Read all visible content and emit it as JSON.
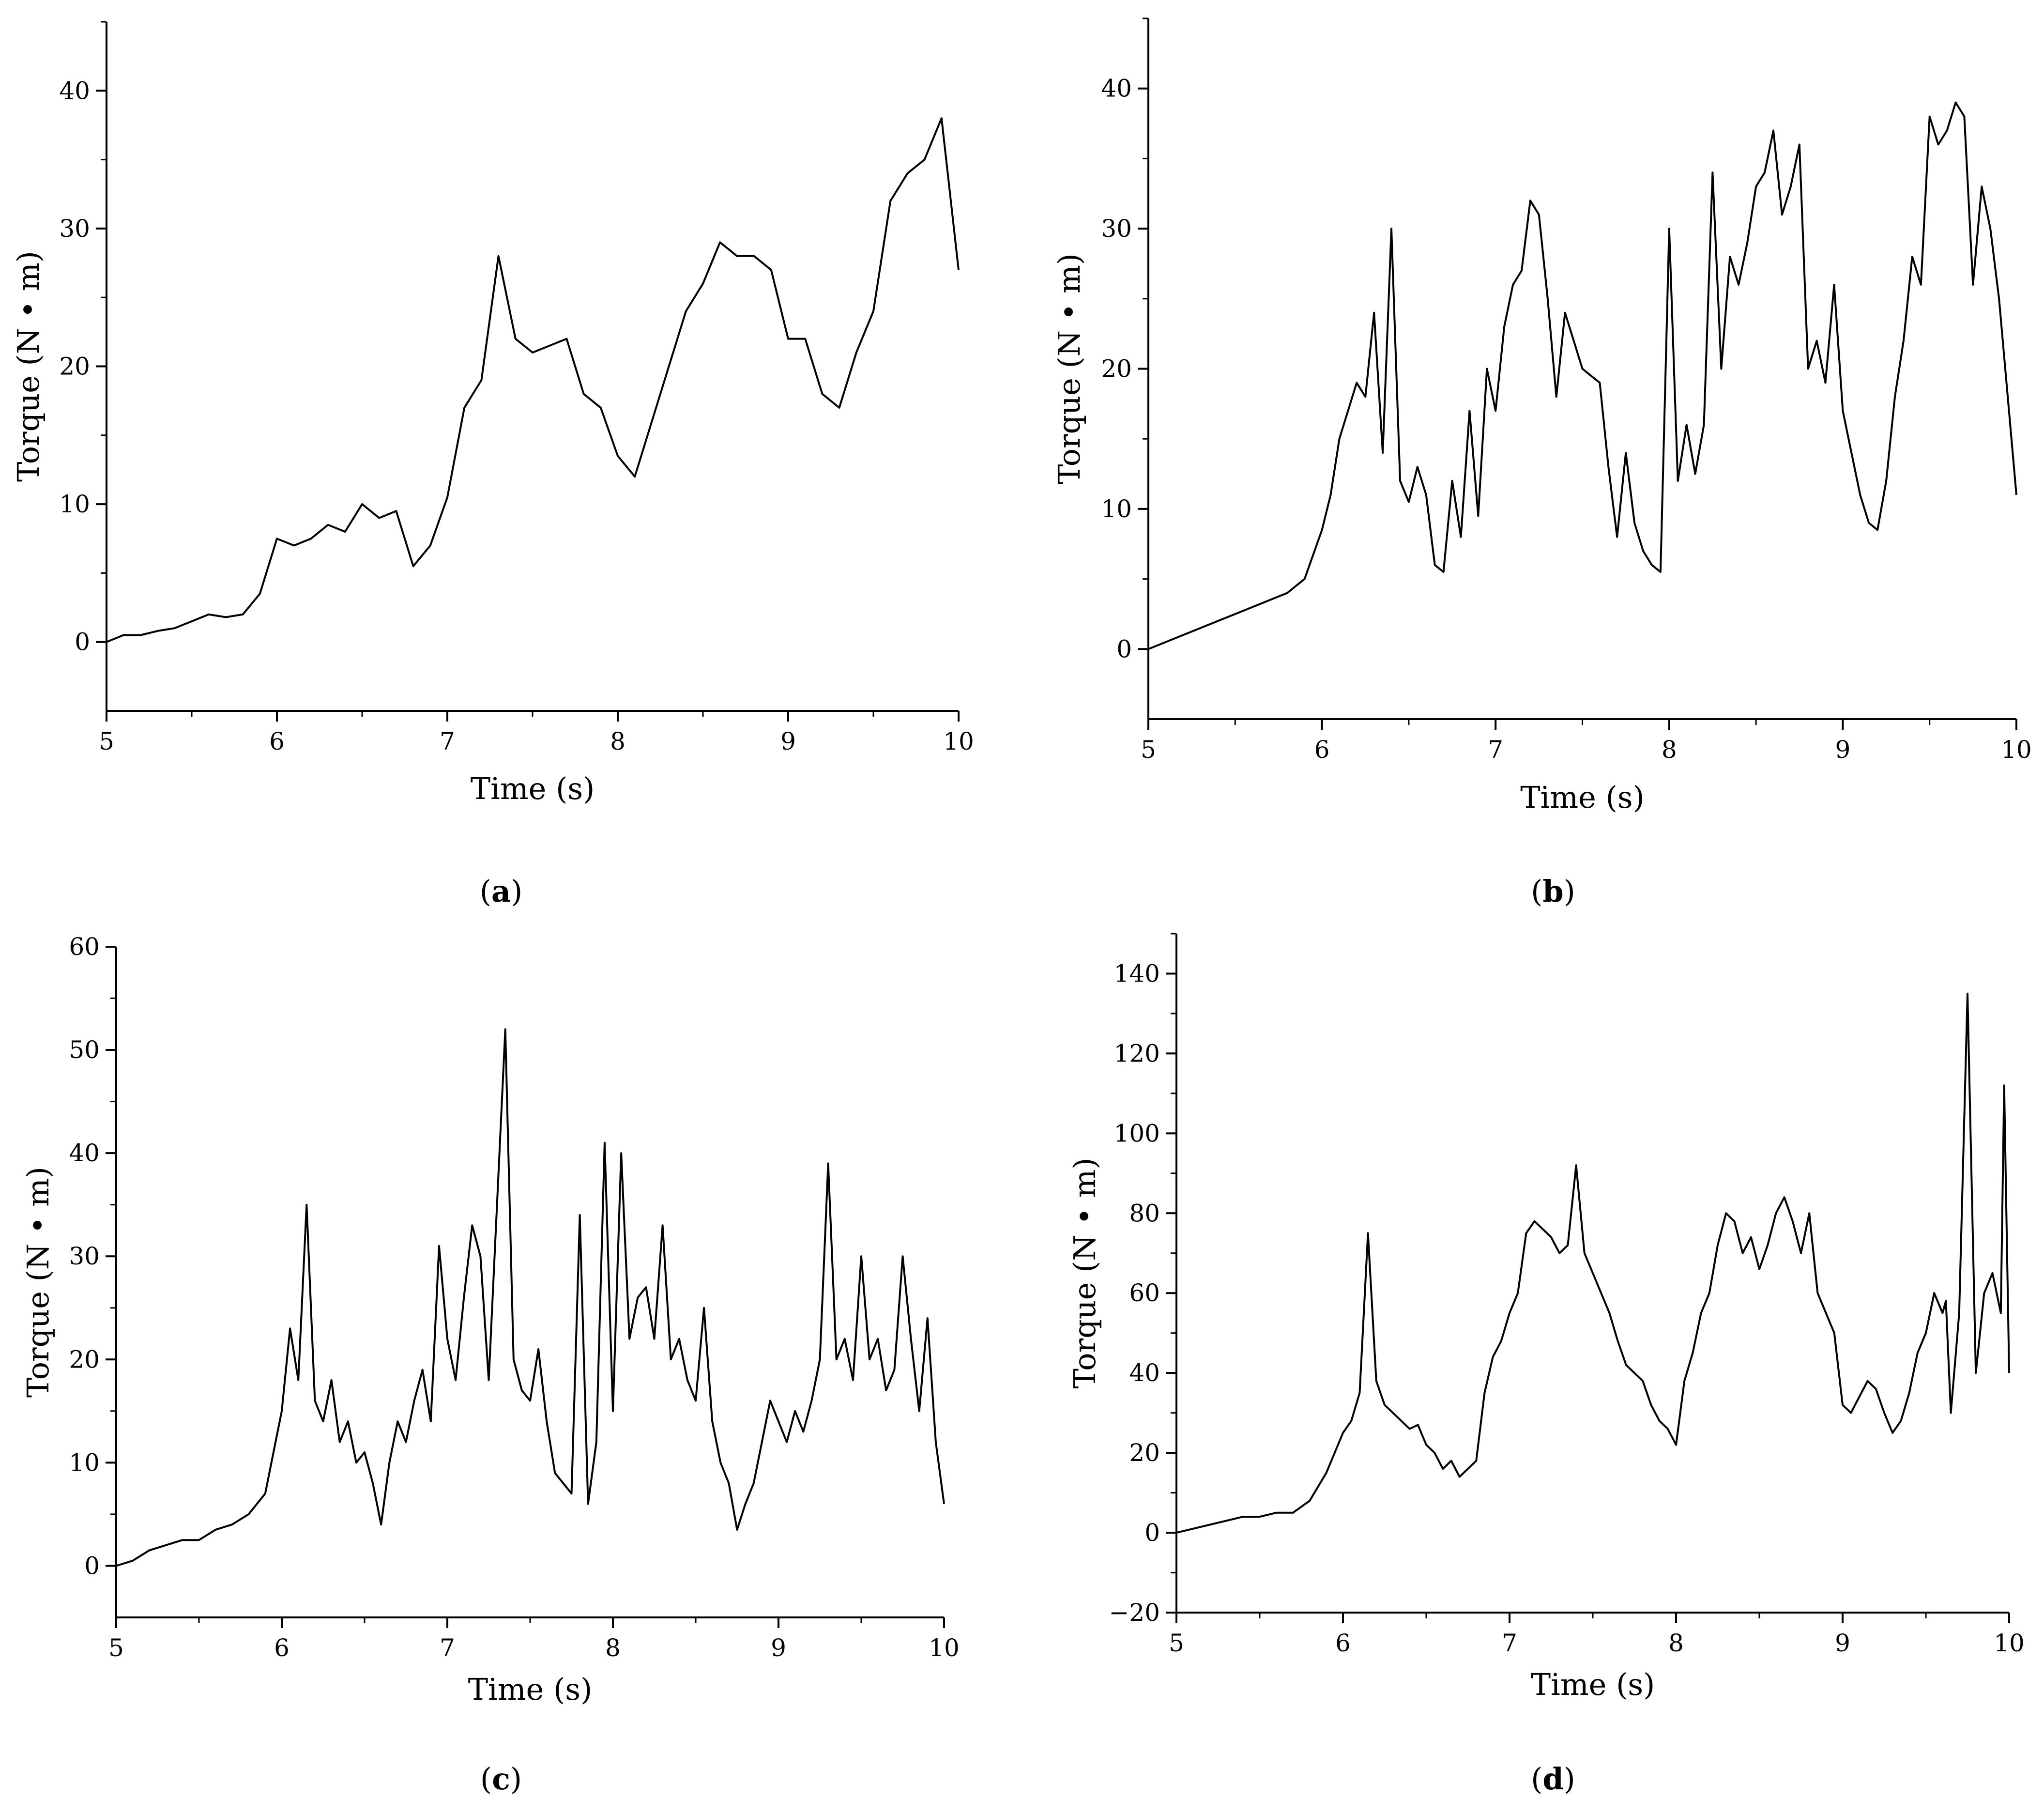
{
  "figure": {
    "captions": [
      {
        "open": "(",
        "letter": "a",
        "close": ")"
      },
      {
        "open": "(",
        "letter": "b",
        "close": ")"
      },
      {
        "open": "(",
        "letter": "c",
        "close": ")"
      },
      {
        "open": "(",
        "letter": "d",
        "close": ")"
      }
    ]
  },
  "chart_data": [
    {
      "type": "line",
      "title": "",
      "xlabel": "Time (s)",
      "ylabel": "Torque (N • m)",
      "xlim": [
        5,
        10
      ],
      "ylim": [
        -5,
        45
      ],
      "xticks": [
        5,
        6,
        7,
        8,
        9,
        10
      ],
      "yticks": [
        0,
        10,
        20,
        30,
        40
      ],
      "grid": false,
      "legend": "none",
      "line_color": "#000000",
      "x": [
        5.0,
        5.1,
        5.2,
        5.3,
        5.4,
        5.5,
        5.6,
        5.7,
        5.8,
        5.9,
        6.0,
        6.1,
        6.2,
        6.3,
        6.4,
        6.5,
        6.6,
        6.7,
        6.8,
        6.9,
        7.0,
        7.1,
        7.2,
        7.3,
        7.4,
        7.5,
        7.6,
        7.7,
        7.8,
        7.9,
        8.0,
        8.1,
        8.2,
        8.3,
        8.4,
        8.5,
        8.6,
        8.7,
        8.8,
        8.9,
        9.0,
        9.1,
        9.2,
        9.3,
        9.4,
        9.5,
        9.6,
        9.7,
        9.8,
        9.9,
        10.0
      ],
      "y": [
        0,
        0.5,
        0.5,
        0.8,
        1.0,
        1.5,
        2.0,
        1.8,
        2.0,
        3.5,
        7.5,
        7.0,
        7.5,
        8.5,
        8.0,
        10.0,
        9.0,
        9.5,
        5.5,
        7.0,
        10.5,
        17.0,
        19.0,
        28.0,
        22.0,
        21.0,
        21.5,
        22.0,
        18.0,
        17.0,
        13.5,
        12.0,
        16.0,
        20.0,
        24.0,
        26.0,
        29.0,
        28.0,
        28.0,
        27.0,
        22.0,
        22.0,
        18.0,
        17.0,
        21.0,
        24.0,
        32.0,
        34.0,
        35.0,
        38.0,
        27.0
      ]
    },
    {
      "type": "line",
      "title": "",
      "xlabel": "Time (s)",
      "ylabel": "Torque (N • m)",
      "xlim": [
        5,
        10
      ],
      "ylim": [
        -5,
        45
      ],
      "xticks": [
        5,
        6,
        7,
        8,
        9,
        10
      ],
      "yticks": [
        0,
        10,
        20,
        30,
        40
      ],
      "grid": false,
      "legend": "none",
      "line_color": "#000000",
      "x": [
        5.0,
        5.1,
        5.2,
        5.3,
        5.4,
        5.5,
        5.6,
        5.7,
        5.8,
        5.9,
        6.0,
        6.05,
        6.1,
        6.15,
        6.2,
        6.25,
        6.3,
        6.35,
        6.4,
        6.45,
        6.5,
        6.55,
        6.6,
        6.65,
        6.7,
        6.75,
        6.8,
        6.85,
        6.9,
        6.95,
        7.0,
        7.05,
        7.1,
        7.15,
        7.2,
        7.25,
        7.3,
        7.35,
        7.4,
        7.45,
        7.5,
        7.55,
        7.6,
        7.65,
        7.7,
        7.75,
        7.8,
        7.85,
        7.9,
        7.95,
        8.0,
        8.05,
        8.1,
        8.15,
        8.2,
        8.25,
        8.3,
        8.35,
        8.4,
        8.45,
        8.5,
        8.55,
        8.6,
        8.65,
        8.7,
        8.75,
        8.8,
        8.85,
        8.9,
        8.95,
        9.0,
        9.05,
        9.1,
        9.15,
        9.2,
        9.25,
        9.3,
        9.35,
        9.4,
        9.45,
        9.5,
        9.55,
        9.6,
        9.65,
        9.7,
        9.75,
        9.8,
        9.85,
        9.9,
        9.95,
        10.0
      ],
      "y": [
        0,
        0.5,
        1.0,
        1.5,
        2.0,
        2.5,
        3.0,
        3.5,
        4.0,
        5.0,
        8.5,
        11.0,
        15.0,
        17.0,
        19.0,
        18.0,
        24.0,
        14.0,
        30.0,
        12.0,
        10.5,
        13.0,
        11.0,
        6.0,
        5.5,
        12.0,
        8.0,
        17.0,
        9.5,
        20.0,
        17.0,
        23.0,
        26.0,
        27.0,
        32.0,
        31.0,
        25.0,
        18.0,
        24.0,
        22.0,
        20.0,
        19.5,
        19.0,
        13.0,
        8.0,
        14.0,
        9.0,
        7.0,
        6.0,
        5.5,
        30.0,
        12.0,
        16.0,
        12.5,
        16.0,
        34.0,
        20.0,
        28.0,
        26.0,
        29.0,
        33.0,
        34.0,
        37.0,
        31.0,
        33.0,
        36.0,
        20.0,
        22.0,
        19.0,
        26.0,
        17.0,
        14.0,
        11.0,
        9.0,
        8.5,
        12.0,
        18.0,
        22.0,
        28.0,
        26.0,
        38.0,
        36.0,
        37.0,
        39.0,
        38.0,
        26.0,
        33.0,
        30.0,
        25.0,
        18.0,
        11.0
      ]
    },
    {
      "type": "line",
      "title": "",
      "xlabel": "Time (s)",
      "ylabel": "Torque (N • m)",
      "xlim": [
        5,
        10
      ],
      "ylim": [
        -5,
        60
      ],
      "xticks": [
        5,
        6,
        7,
        8,
        9,
        10
      ],
      "yticks": [
        0,
        10,
        20,
        30,
        40,
        50,
        60
      ],
      "grid": false,
      "legend": "none",
      "line_color": "#000000",
      "x": [
        5.0,
        5.1,
        5.2,
        5.3,
        5.4,
        5.5,
        5.6,
        5.7,
        5.8,
        5.9,
        6.0,
        6.05,
        6.1,
        6.15,
        6.2,
        6.25,
        6.3,
        6.35,
        6.4,
        6.45,
        6.5,
        6.55,
        6.6,
        6.65,
        6.7,
        6.75,
        6.8,
        6.85,
        6.9,
        6.95,
        7.0,
        7.05,
        7.1,
        7.15,
        7.2,
        7.25,
        7.3,
        7.35,
        7.4,
        7.45,
        7.5,
        7.55,
        7.6,
        7.65,
        7.7,
        7.75,
        7.8,
        7.85,
        7.9,
        7.95,
        8.0,
        8.05,
        8.1,
        8.15,
        8.2,
        8.25,
        8.3,
        8.35,
        8.4,
        8.45,
        8.5,
        8.55,
        8.6,
        8.65,
        8.7,
        8.75,
        8.8,
        8.85,
        8.9,
        8.95,
        9.0,
        9.05,
        9.1,
        9.15,
        9.2,
        9.25,
        9.3,
        9.35,
        9.4,
        9.45,
        9.5,
        9.55,
        9.6,
        9.65,
        9.7,
        9.75,
        9.8,
        9.85,
        9.9,
        9.95,
        10.0
      ],
      "y": [
        0,
        0.5,
        1.5,
        2.0,
        2.5,
        2.5,
        3.5,
        4.0,
        5.0,
        7.0,
        15.0,
        23.0,
        18.0,
        35.0,
        16.0,
        14.0,
        18.0,
        12.0,
        14.0,
        10.0,
        11.0,
        8.0,
        4.0,
        10.0,
        14.0,
        12.0,
        16.0,
        19.0,
        14.0,
        31.0,
        22.0,
        18.0,
        26.0,
        33.0,
        30.0,
        18.0,
        35.0,
        52.0,
        20.0,
        17.0,
        16.0,
        21.0,
        14.0,
        9.0,
        8.0,
        7.0,
        34.0,
        6.0,
        12.0,
        41.0,
        15.0,
        40.0,
        22.0,
        26.0,
        27.0,
        22.0,
        33.0,
        20.0,
        22.0,
        18.0,
        16.0,
        25.0,
        14.0,
        10.0,
        8.0,
        3.5,
        6.0,
        8.0,
        12.0,
        16.0,
        14.0,
        12.0,
        15.0,
        13.0,
        16.0,
        20.0,
        39.0,
        20.0,
        22.0,
        18.0,
        30.0,
        20.0,
        22.0,
        17.0,
        19.0,
        30.0,
        22.0,
        15.0,
        24.0,
        12.0,
        6.0
      ]
    },
    {
      "type": "line",
      "title": "",
      "xlabel": "Time (s)",
      "ylabel": "Torque (N • m)",
      "xlim": [
        5,
        10
      ],
      "ylim": [
        -20,
        150
      ],
      "xticks": [
        5,
        6,
        7,
        8,
        9,
        10
      ],
      "yticks": [
        -20,
        0,
        20,
        40,
        60,
        80,
        100,
        120,
        140
      ],
      "grid": false,
      "legend": "none",
      "line_color": "#000000",
      "x": [
        5.0,
        5.1,
        5.2,
        5.3,
        5.4,
        5.5,
        5.6,
        5.7,
        5.8,
        5.9,
        6.0,
        6.05,
        6.1,
        6.15,
        6.2,
        6.25,
        6.3,
        6.35,
        6.4,
        6.45,
        6.5,
        6.55,
        6.6,
        6.65,
        6.7,
        6.75,
        6.8,
        6.85,
        6.9,
        6.95,
        7.0,
        7.05,
        7.1,
        7.15,
        7.2,
        7.25,
        7.3,
        7.35,
        7.4,
        7.45,
        7.5,
        7.55,
        7.6,
        7.65,
        7.7,
        7.75,
        7.8,
        7.85,
        7.9,
        7.95,
        8.0,
        8.05,
        8.1,
        8.15,
        8.2,
        8.25,
        8.3,
        8.35,
        8.4,
        8.45,
        8.5,
        8.55,
        8.6,
        8.65,
        8.7,
        8.75,
        8.8,
        8.85,
        8.9,
        8.95,
        9.0,
        9.05,
        9.1,
        9.15,
        9.2,
        9.25,
        9.3,
        9.35,
        9.4,
        9.45,
        9.5,
        9.55,
        9.6,
        9.62,
        9.65,
        9.7,
        9.75,
        9.8,
        9.85,
        9.9,
        9.95,
        9.97,
        10.0
      ],
      "y": [
        0,
        1.0,
        2.0,
        3.0,
        4.0,
        4.0,
        5.0,
        5.0,
        8.0,
        15.0,
        25.0,
        28.0,
        35.0,
        75.0,
        38.0,
        32.0,
        30.0,
        28.0,
        26.0,
        27.0,
        22.0,
        20.0,
        16.0,
        18.0,
        14.0,
        16.0,
        18.0,
        35.0,
        44.0,
        48.0,
        55.0,
        60.0,
        75.0,
        78.0,
        76.0,
        74.0,
        70.0,
        72.0,
        92.0,
        70.0,
        65.0,
        60.0,
        55.0,
        48.0,
        42.0,
        40.0,
        38.0,
        32.0,
        28.0,
        26.0,
        22.0,
        38.0,
        45.0,
        55.0,
        60.0,
        72.0,
        80.0,
        78.0,
        70.0,
        74.0,
        66.0,
        72.0,
        80.0,
        84.0,
        78.0,
        70.0,
        80.0,
        60.0,
        55.0,
        50.0,
        32.0,
        30.0,
        34.0,
        38.0,
        36.0,
        30.0,
        25.0,
        28.0,
        35.0,
        45.0,
        50.0,
        60.0,
        55.0,
        58.0,
        30.0,
        55.0,
        135.0,
        40.0,
        60.0,
        65.0,
        55.0,
        112.0,
        40.0
      ]
    }
  ]
}
